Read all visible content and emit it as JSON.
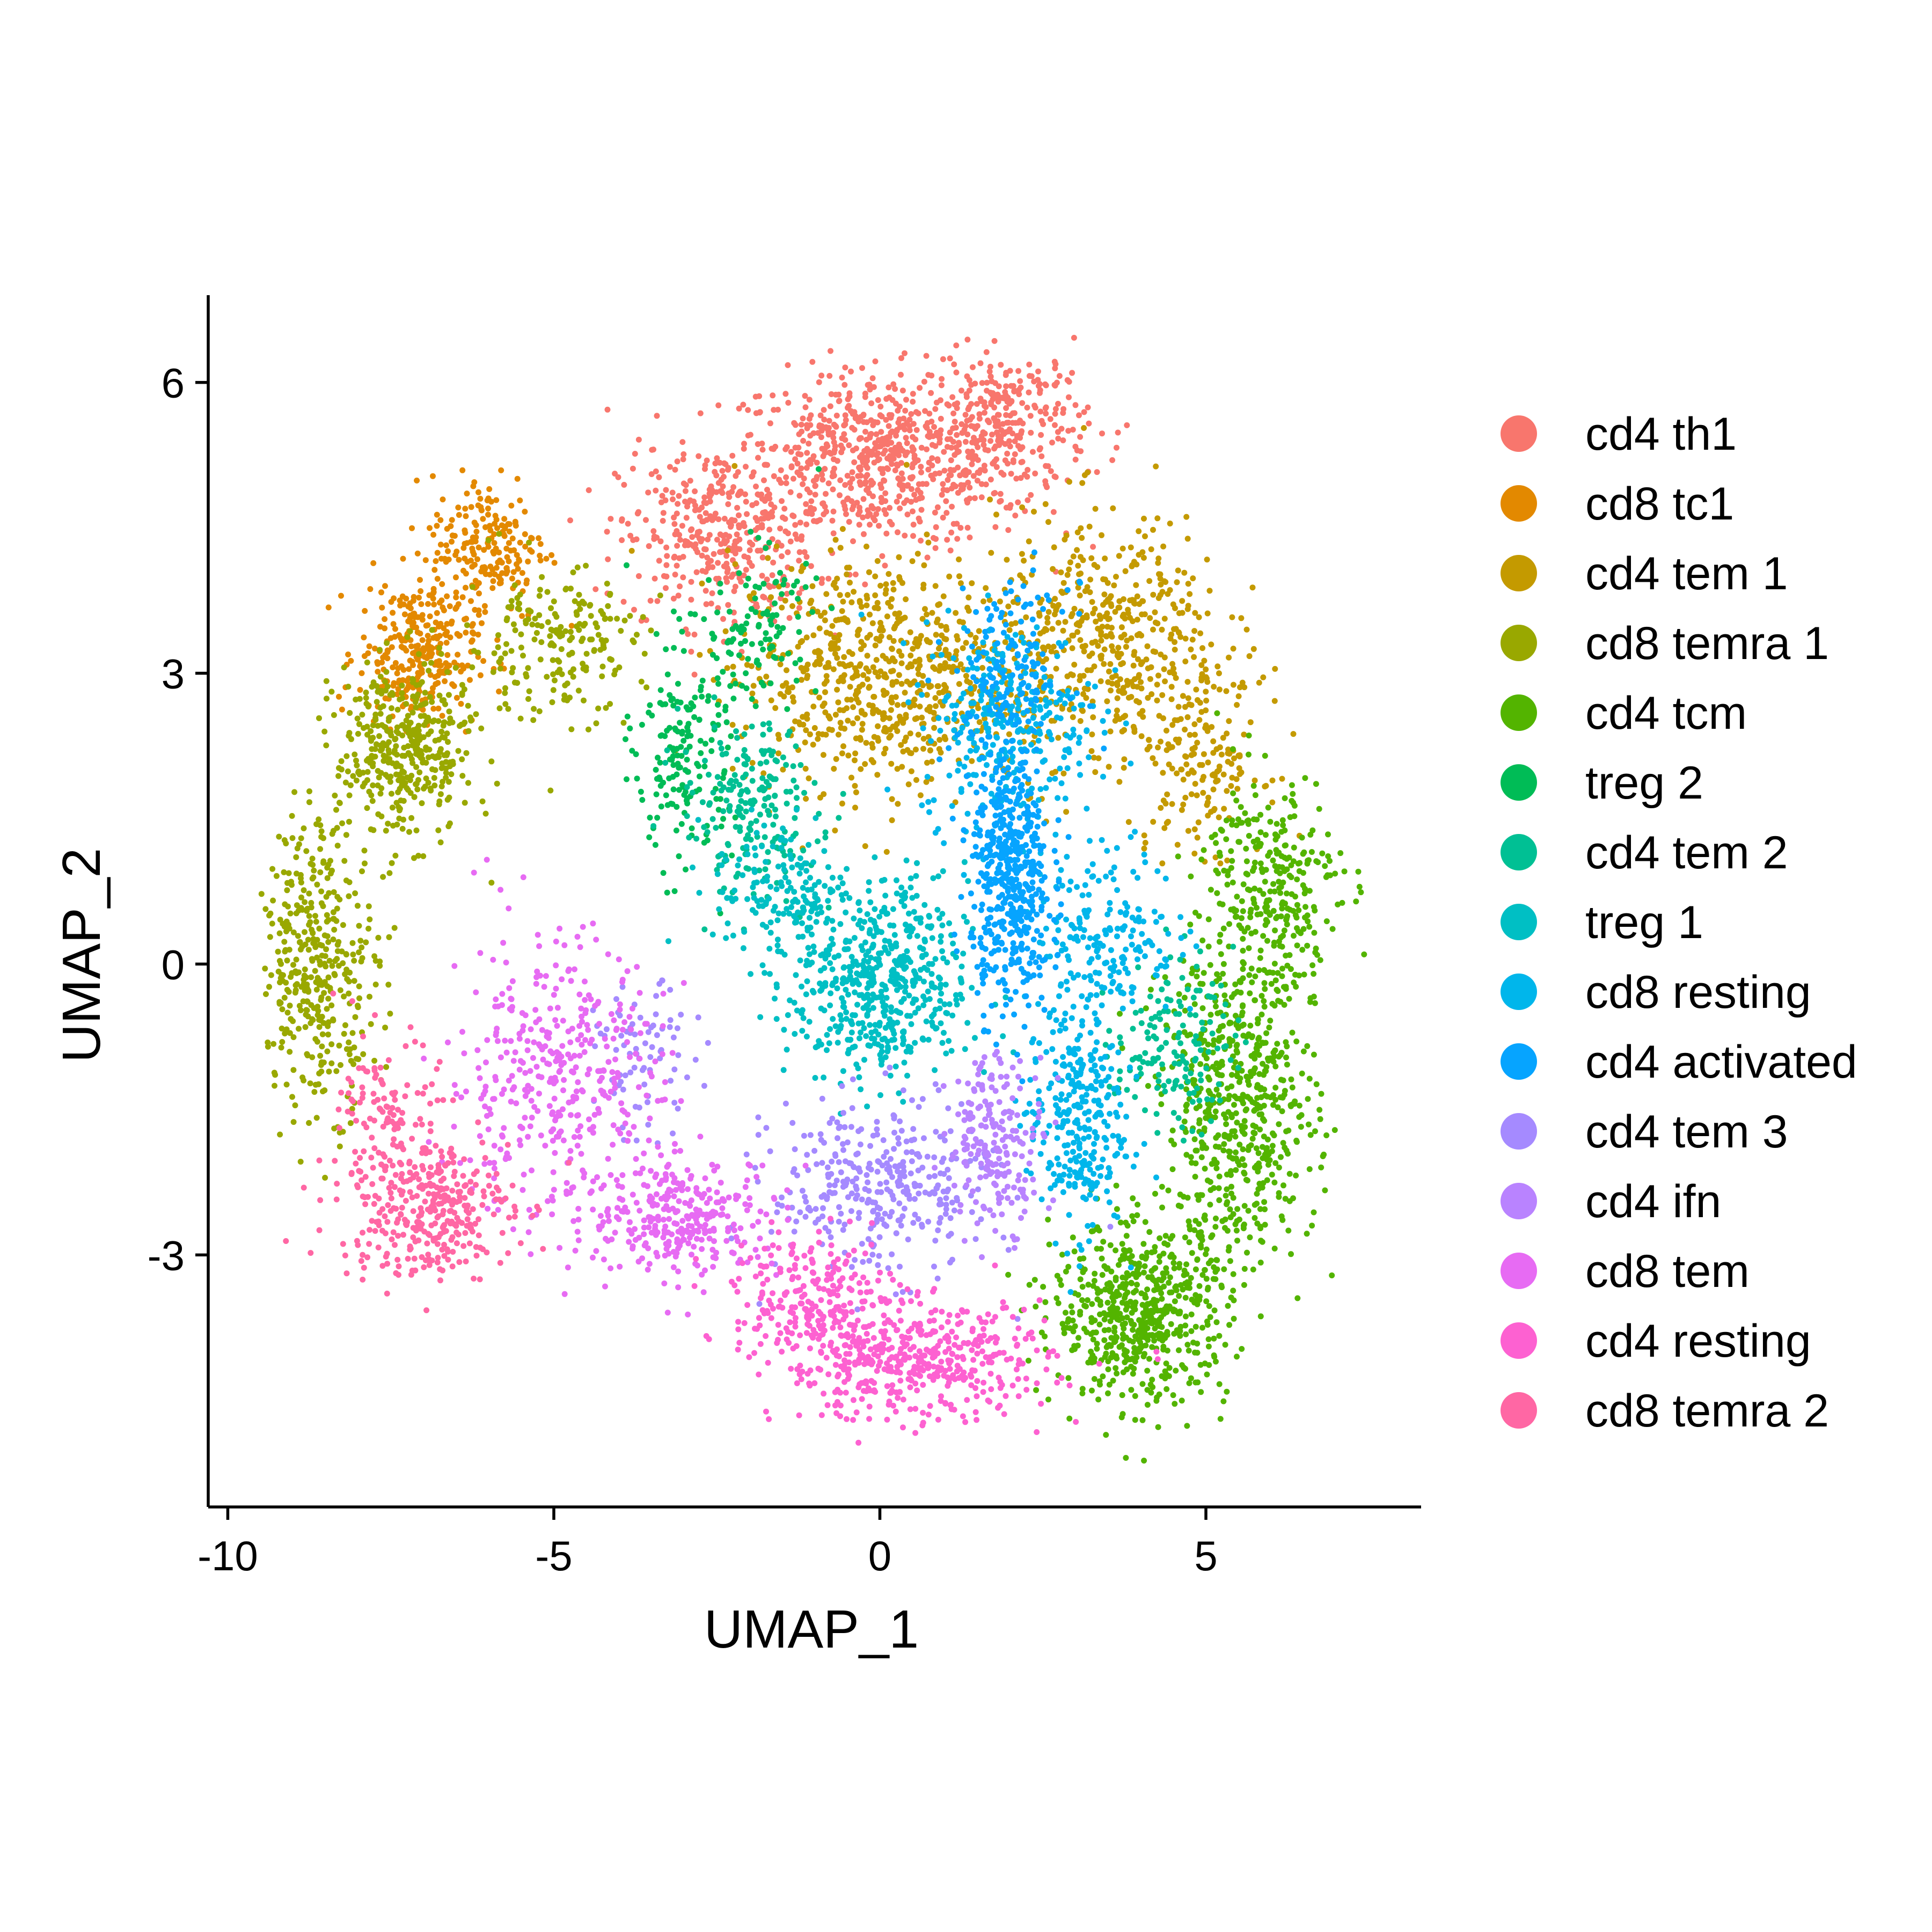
{
  "chart_data": {
    "type": "scatter",
    "title": "",
    "xlabel": "UMAP_1",
    "ylabel": "UMAP_2",
    "xlim": [
      -10.3,
      8.3
    ],
    "ylim": [
      -5.6,
      6.9
    ],
    "xticks": [
      -10,
      -5,
      0,
      5
    ],
    "yticks": [
      -3,
      0,
      3,
      6
    ],
    "xtick_labels": [
      "-10",
      "-5",
      "0",
      "5"
    ],
    "ytick_labels": [
      "-3",
      "0",
      "3",
      "6"
    ],
    "grid": false,
    "legend_position": "right",
    "series": [
      {
        "name": "cd4 th1",
        "color": "#F8766D",
        "clusters": [
          {
            "cx": 0.0,
            "cy": 5.2,
            "sx": 1.6,
            "sy": 0.6,
            "n": 700
          },
          {
            "cx": -2.5,
            "cy": 4.4,
            "sx": 1.0,
            "sy": 0.6,
            "n": 350
          },
          {
            "cx": 2.0,
            "cy": 5.6,
            "sx": 0.8,
            "sy": 0.5,
            "n": 250
          }
        ]
      },
      {
        "name": "cd8 tc1",
        "color": "#E38900",
        "clusters": [
          {
            "cx": -7.1,
            "cy": 3.2,
            "sx": 0.6,
            "sy": 0.5,
            "n": 300
          },
          {
            "cx": -6.0,
            "cy": 4.3,
            "sx": 0.6,
            "sy": 0.5,
            "n": 200
          }
        ]
      },
      {
        "name": "cd4 tem 1",
        "color": "#C49A00",
        "clusters": [
          {
            "cx": 0.0,
            "cy": 3.0,
            "sx": 1.5,
            "sy": 0.8,
            "n": 700
          },
          {
            "cx": 3.5,
            "cy": 3.3,
            "sx": 1.2,
            "sy": 0.9,
            "n": 500
          },
          {
            "cx": 5.0,
            "cy": 2.1,
            "sx": 0.6,
            "sy": 0.6,
            "n": 150
          }
        ]
      },
      {
        "name": "cd8 temra 1",
        "color": "#99A800",
        "clusters": [
          {
            "cx": -7.3,
            "cy": 2.2,
            "sx": 0.7,
            "sy": 0.6,
            "n": 400
          },
          {
            "cx": -8.6,
            "cy": 0.0,
            "sx": 0.6,
            "sy": 1.0,
            "n": 400
          },
          {
            "cx": -5.0,
            "cy": 3.3,
            "sx": 0.9,
            "sy": 0.5,
            "n": 200
          }
        ]
      },
      {
        "name": "cd4 tcm",
        "color": "#53B400",
        "clusters": [
          {
            "cx": 4.0,
            "cy": -3.6,
            "sx": 0.9,
            "sy": 0.6,
            "n": 600
          },
          {
            "cx": 5.5,
            "cy": -1.5,
            "sx": 0.8,
            "sy": 1.1,
            "n": 600
          },
          {
            "cx": 6.0,
            "cy": 0.8,
            "sx": 0.7,
            "sy": 0.8,
            "n": 300
          }
        ]
      },
      {
        "name": "treg 2",
        "color": "#00BC56",
        "clusters": [
          {
            "cx": -3.0,
            "cy": 2.2,
            "sx": 0.5,
            "sy": 0.8,
            "n": 180
          },
          {
            "cx": -1.8,
            "cy": 3.5,
            "sx": 0.6,
            "sy": 0.5,
            "n": 100
          }
        ]
      },
      {
        "name": "cd4 tem 2",
        "color": "#00C094",
        "clusters": [
          {
            "cx": -2.0,
            "cy": 1.6,
            "sx": 0.7,
            "sy": 0.6,
            "n": 200
          },
          {
            "cx": 4.5,
            "cy": -0.8,
            "sx": 0.6,
            "sy": 0.6,
            "n": 150
          }
        ]
      },
      {
        "name": "treg 1",
        "color": "#00BFC4",
        "clusters": [
          {
            "cx": 0.0,
            "cy": -0.2,
            "sx": 0.9,
            "sy": 0.7,
            "n": 550
          },
          {
            "cx": -1.5,
            "cy": 0.8,
            "sx": 0.7,
            "sy": 0.5,
            "n": 150
          }
        ]
      },
      {
        "name": "cd8 resting",
        "color": "#00B6EB",
        "clusters": [
          {
            "cx": 2.0,
            "cy": 2.5,
            "sx": 0.9,
            "sy": 0.7,
            "n": 300
          },
          {
            "cx": 3.0,
            "cy": -1.6,
            "sx": 0.5,
            "sy": 0.8,
            "n": 300
          },
          {
            "cx": 3.5,
            "cy": 0.3,
            "sx": 0.7,
            "sy": 0.6,
            "n": 200
          }
        ]
      },
      {
        "name": "cd4 activated",
        "color": "#06A4FF",
        "clusters": [
          {
            "cx": 2.0,
            "cy": 0.9,
            "sx": 0.4,
            "sy": 0.9,
            "n": 500
          },
          {
            "cx": 2.0,
            "cy": 3.0,
            "sx": 0.6,
            "sy": 0.6,
            "n": 150
          }
        ]
      },
      {
        "name": "cd4 tem 3",
        "color": "#A58AFF",
        "clusters": [
          {
            "cx": 0.0,
            "cy": -2.3,
            "sx": 1.1,
            "sy": 0.6,
            "n": 350
          },
          {
            "cx": -3.6,
            "cy": -1.0,
            "sx": 0.5,
            "sy": 0.5,
            "n": 80
          }
        ]
      },
      {
        "name": "cd4 ifn",
        "color": "#B983FF",
        "clusters": [
          {
            "cx": 1.8,
            "cy": -1.8,
            "sx": 0.5,
            "sy": 0.6,
            "n": 200
          }
        ]
      },
      {
        "name": "cd8 tem",
        "color": "#E76BF3",
        "clusters": [
          {
            "cx": -5.0,
            "cy": -1.2,
            "sx": 1.1,
            "sy": 1.0,
            "n": 400
          },
          {
            "cx": -3.0,
            "cy": -2.6,
            "sx": 1.0,
            "sy": 0.4,
            "n": 300
          }
        ]
      },
      {
        "name": "cd4 resting",
        "color": "#FD61D1",
        "clusters": [
          {
            "cx": 0.5,
            "cy": -4.1,
            "sx": 1.4,
            "sy": 0.4,
            "n": 500
          },
          {
            "cx": -1.0,
            "cy": -3.4,
            "sx": 0.8,
            "sy": 0.4,
            "n": 200
          }
        ]
      },
      {
        "name": "cd8 temra 2",
        "color": "#FF67A4",
        "clusters": [
          {
            "cx": -7.0,
            "cy": -2.5,
            "sx": 0.9,
            "sy": 0.5,
            "n": 350
          },
          {
            "cx": -7.5,
            "cy": -1.5,
            "sx": 0.5,
            "sy": 0.5,
            "n": 100
          }
        ]
      }
    ]
  }
}
